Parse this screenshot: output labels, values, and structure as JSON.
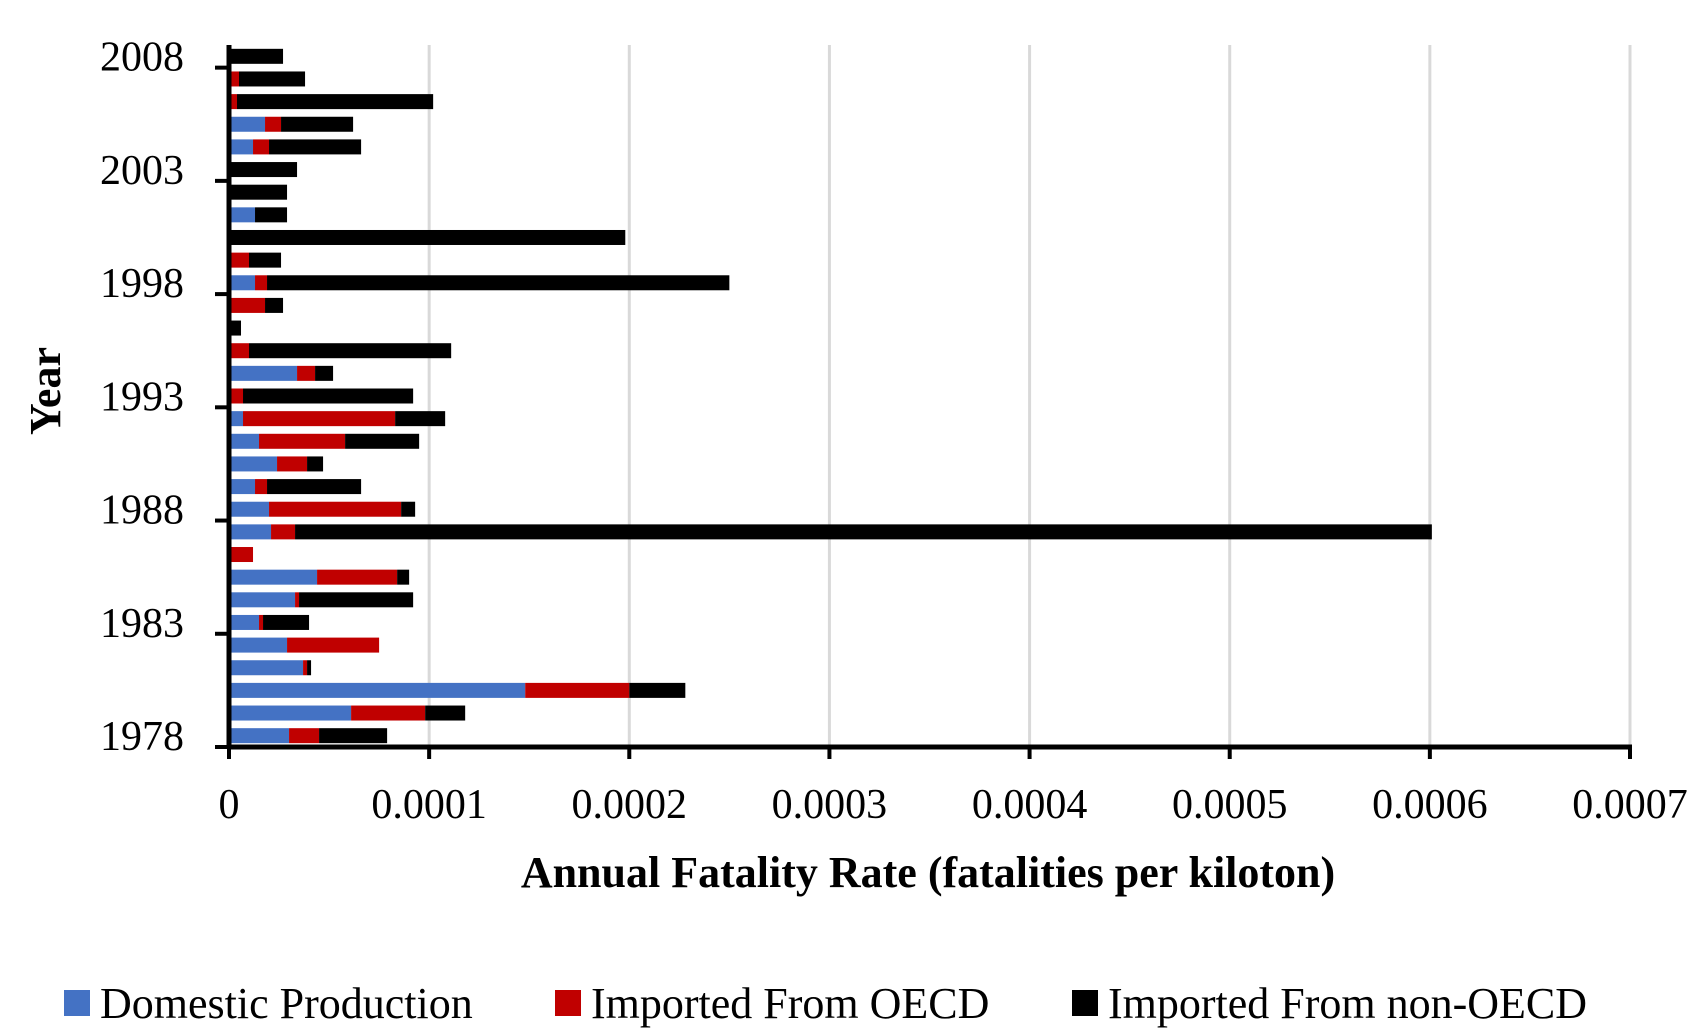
{
  "chart_data": {
    "type": "bar",
    "orientation": "horizontal",
    "stacked": true,
    "title": "",
    "xlabel": "Annual Fatality Rate (fatalities per kiloton)",
    "ylabel": "Year",
    "xlim": [
      0,
      0.0007
    ],
    "x_ticks": [
      "0",
      "0.0001",
      "0.0002",
      "0.0003",
      "0.0004",
      "0.0005",
      "0.0006",
      "0.0007"
    ],
    "x_tick_values": [
      0,
      0.0001,
      0.0002,
      0.0003,
      0.0004,
      0.0005,
      0.0006,
      0.0007
    ],
    "y_tick_labels": [
      "1978",
      "1983",
      "1988",
      "1993",
      "1998",
      "2003",
      "2008"
    ],
    "grid": "vertical",
    "legend_position": "bottom",
    "categories": [
      "1978",
      "1979",
      "1980",
      "1981",
      "1982",
      "1983",
      "1984",
      "1985",
      "1986",
      "1987",
      "1988",
      "1989",
      "1990",
      "1991",
      "1992",
      "1993",
      "1994",
      "1995",
      "1996",
      "1997",
      "1998",
      "1999",
      "2000",
      "2001",
      "2002",
      "2003",
      "2004",
      "2005",
      "2006",
      "2007",
      "2008"
    ],
    "series": [
      {
        "name": "Domestic Production",
        "color": "#4472C4",
        "values": [
          3e-05,
          6.1e-05,
          0.000148,
          3.7e-05,
          2.9e-05,
          1.5e-05,
          3.3e-05,
          4.4e-05,
          0,
          2.1e-05,
          2e-05,
          1.3e-05,
          2.4e-05,
          1.5e-05,
          7e-06,
          0,
          3.4e-05,
          0,
          0,
          0,
          1.3e-05,
          0,
          0,
          1.3e-05,
          0,
          0,
          1.2e-05,
          1.8e-05,
          0,
          0,
          0
        ]
      },
      {
        "name": "Imported From OECD",
        "color": "#C00000",
        "values": [
          1.5e-05,
          3.7e-05,
          5.2e-05,
          2e-06,
          4.6e-05,
          2e-06,
          2e-06,
          4e-05,
          1.2e-05,
          1.2e-05,
          6.6e-05,
          6e-06,
          1.5e-05,
          4.3e-05,
          7.6e-05,
          7e-06,
          9e-06,
          1e-05,
          0,
          1.8e-05,
          6e-06,
          1e-05,
          0,
          0,
          0,
          0,
          8e-06,
          8e-06,
          4e-06,
          5e-06,
          0
        ]
      },
      {
        "name": "Imported From non-OECD",
        "color": "#000000",
        "values": [
          3.4e-05,
          2e-05,
          2.8e-05,
          2e-06,
          0,
          2.3e-05,
          5.7e-05,
          6e-06,
          0,
          0.000568,
          7e-06,
          4.7e-05,
          8e-06,
          3.7e-05,
          2.5e-05,
          8.5e-05,
          9e-06,
          0.000101,
          6e-06,
          9e-06,
          0.000231,
          1.6e-05,
          0.000198,
          1.6e-05,
          2.9e-05,
          3.4e-05,
          4.6e-05,
          3.6e-05,
          9.8e-05,
          3.3e-05,
          2.7e-05
        ]
      }
    ]
  }
}
